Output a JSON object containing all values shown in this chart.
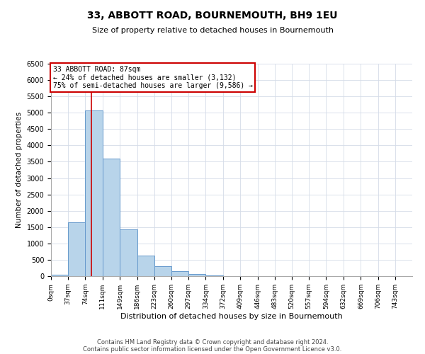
{
  "title": "33, ABBOTT ROAD, BOURNEMOUTH, BH9 1EU",
  "subtitle": "Size of property relative to detached houses in Bournemouth",
  "xlabel": "Distribution of detached houses by size in Bournemouth",
  "ylabel": "Number of detached properties",
  "bar_values": [
    50,
    1650,
    5080,
    3600,
    1420,
    620,
    300,
    145,
    60,
    30,
    10
  ],
  "bar_left_edges": [
    0,
    37,
    74,
    111,
    149,
    186,
    223,
    260,
    297,
    334,
    372
  ],
  "bin_width": 37,
  "x_tick_labels": [
    "0sqm",
    "37sqm",
    "74sqm",
    "111sqm",
    "149sqm",
    "186sqm",
    "223sqm",
    "260sqm",
    "297sqm",
    "334sqm",
    "372sqm",
    "409sqm",
    "446sqm",
    "483sqm",
    "520sqm",
    "557sqm",
    "594sqm",
    "632sqm",
    "669sqm",
    "706sqm",
    "743sqm"
  ],
  "x_tick_positions": [
    0,
    37,
    74,
    111,
    149,
    186,
    223,
    260,
    297,
    334,
    372,
    409,
    446,
    483,
    520,
    557,
    594,
    632,
    669,
    706,
    743
  ],
  "x_max": 780,
  "ylim": [
    0,
    6500
  ],
  "bar_color": "#b8d4ea",
  "bar_edge_color": "#6699cc",
  "property_line_x": 87,
  "property_line_color": "#cc0000",
  "annotation_text": "33 ABBOTT ROAD: 87sqm\n← 24% of detached houses are smaller (3,132)\n75% of semi-detached houses are larger (9,586) →",
  "annotation_box_color": "#cc0000",
  "grid_color": "#d5dce8",
  "footer_line1": "Contains HM Land Registry data © Crown copyright and database right 2024.",
  "footer_line2": "Contains public sector information licensed under the Open Government Licence v3.0.",
  "bg_color": "#ffffff",
  "title_fontsize": 10,
  "subtitle_fontsize": 8,
  "footer_fontsize": 6
}
